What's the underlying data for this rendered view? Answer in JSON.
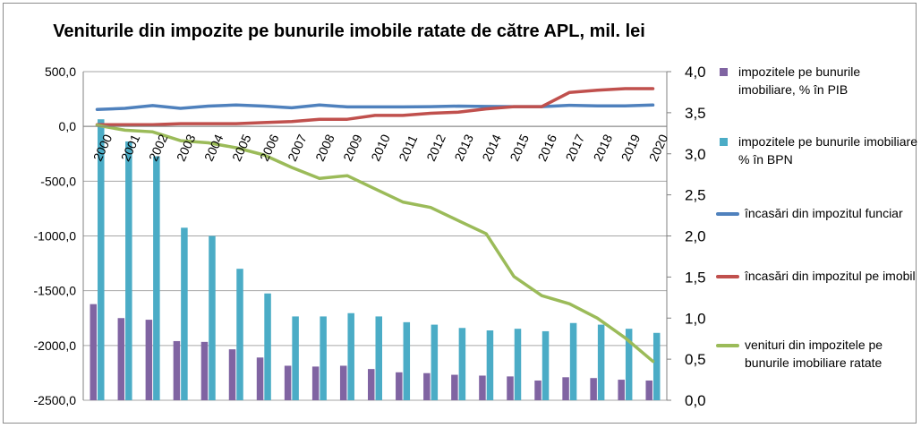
{
  "chart_data": {
    "type": "bar",
    "title": "Veniturile din impozite pe bunurile imobile ratate de către APL, mil. lei",
    "categories": [
      "2000",
      "2001",
      "2002",
      "2003",
      "2004",
      "2005",
      "2006",
      "2007",
      "2008",
      "2009",
      "2010",
      "2011",
      "2012",
      "2013",
      "2014",
      "2015",
      "2016",
      "2017",
      "2018",
      "2019",
      "2020"
    ],
    "y_left": {
      "ylim": [
        -2500,
        500
      ],
      "ticks": [
        "500,0",
        "0,0",
        "-500,0",
        "-1000,0",
        "-1500,0",
        "-2000,0",
        "-2500,0"
      ]
    },
    "y_right": {
      "ylim": [
        0,
        4
      ],
      "ticks": [
        "4,0",
        "3,5",
        "3,0",
        "2,5",
        "2,0",
        "1,5",
        "1,0",
        "0,5",
        "0,0"
      ]
    },
    "grid": true,
    "legend_position": "right",
    "series": [
      {
        "name": "impozitele pe bunurile imobiliare, % în PIB",
        "type": "bar",
        "axis": "right",
        "color": "#8064A2",
        "values": [
          1.17,
          1.0,
          0.98,
          0.72,
          0.71,
          0.62,
          0.52,
          0.42,
          0.41,
          0.42,
          0.38,
          0.34,
          0.33,
          0.31,
          0.3,
          0.29,
          0.24,
          0.28,
          0.27,
          0.25,
          0.24
        ]
      },
      {
        "name": "impozitele pe bunurile imobiliare % în BPN",
        "type": "bar",
        "axis": "right",
        "color": "#4BACC6",
        "values": [
          3.42,
          3.15,
          2.97,
          2.1,
          2.0,
          1.6,
          1.3,
          1.02,
          1.02,
          1.06,
          1.02,
          0.95,
          0.92,
          0.88,
          0.85,
          0.87,
          0.84,
          0.94,
          0.92,
          0.87,
          0.82
        ]
      },
      {
        "name": "încasări din impozitul funciar",
        "type": "line",
        "axis": "left",
        "color": "#4F81BD",
        "values": [
          155,
          165,
          190,
          165,
          185,
          195,
          185,
          170,
          195,
          178,
          178,
          178,
          180,
          185,
          182,
          180,
          180,
          193,
          188,
          188,
          195
        ]
      },
      {
        "name": "încasări din impozitul pe imobil",
        "type": "line",
        "axis": "left",
        "color": "#C0504D",
        "values": [
          15,
          15,
          15,
          25,
          25,
          25,
          35,
          45,
          65,
          65,
          100,
          100,
          120,
          130,
          160,
          180,
          180,
          310,
          330,
          345,
          345
        ]
      },
      {
        "name": "venituri din impozitele pe bunurile imobiliare ratate",
        "type": "line",
        "axis": "left",
        "color": "#9BBB59",
        "values": [
          10,
          -35,
          -50,
          -130,
          -150,
          -195,
          -260,
          -375,
          -475,
          -450,
          -570,
          -690,
          -740,
          -860,
          -980,
          -1370,
          -1545,
          -1620,
          -1750,
          -1930,
          -2145
        ]
      }
    ]
  },
  "colors": {
    "grid": "#a6a6a6",
    "axis": "#808080",
    "frame": "#8c8c8c"
  }
}
